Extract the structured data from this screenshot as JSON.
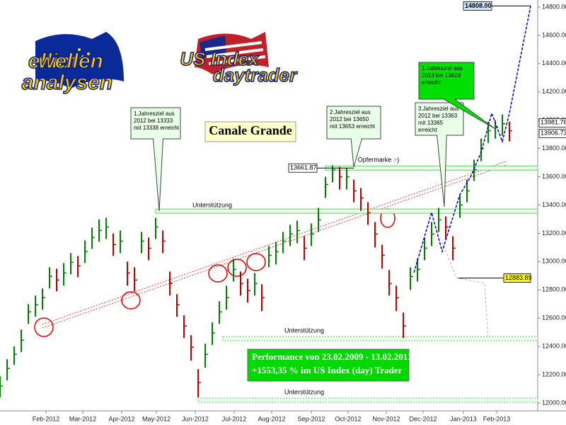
{
  "chart_data": {
    "type": "ohlc",
    "title": "Canale Grande",
    "logos": [
      [
        "elliott",
        "wellen",
        "analysen"
      ],
      [
        "US Index",
        "daytrader"
      ]
    ],
    "up_color": "#008000",
    "down_color": "#c00000",
    "x": [
      0,
      1,
      2,
      3,
      4,
      5,
      6,
      7,
      8,
      9,
      10,
      11,
      12,
      13,
      14,
      15,
      16,
      17,
      18,
      19,
      20,
      21,
      22,
      23,
      24,
      25,
      26,
      27,
      28,
      29,
      30,
      31,
      32,
      33,
      34,
      35,
      36,
      37,
      38,
      39,
      40,
      41,
      42,
      43,
      44,
      45,
      46,
      47,
      48,
      49,
      50,
      51,
      52,
      53,
      54,
      55,
      56,
      57,
      58,
      59,
      60,
      61,
      62,
      63,
      64,
      65,
      66,
      67,
      68,
      69,
      70,
      71,
      72
    ],
    "high": [
      12190,
      12310,
      12400,
      12520,
      12700,
      12760,
      12810,
      12960,
      12950,
      12990,
      13060,
      13040,
      13150,
      13240,
      13300,
      13310,
      13200,
      13220,
      13000,
      12960,
      13210,
      13170,
      13310,
      13220,
      12930,
      12770,
      12620,
      12480,
      12240,
      12420,
      12570,
      12720,
      12830,
      13020,
      12930,
      12880,
      12920,
      12840,
      13110,
      13140,
      13210,
      13260,
      13290,
      13180,
      13270,
      13380,
      13600,
      13680,
      13670,
      13660,
      13580,
      13520,
      13420,
      13280,
      13120,
      12940,
      12830,
      12640,
      12960,
      13020,
      13170,
      13280,
      13380,
      13320,
      13180,
      13470,
      13580,
      13720,
      13870,
      13990,
      14000,
      14040,
      13990
    ],
    "low": [
      12040,
      12160,
      12270,
      12360,
      12560,
      12610,
      12660,
      12810,
      12790,
      12830,
      12910,
      12890,
      12990,
      13090,
      13140,
      13160,
      13040,
      13060,
      12830,
      12790,
      13060,
      13010,
      13160,
      13060,
      12760,
      12610,
      12460,
      12300,
      12040,
      12250,
      12410,
      12560,
      12660,
      12860,
      12760,
      12710,
      12760,
      12650,
      12960,
      12980,
      13060,
      13110,
      13130,
      13010,
      13110,
      13210,
      13450,
      13560,
      13510,
      13510,
      13420,
      13360,
      13260,
      13100,
      12950,
      12760,
      12650,
      12460,
      12800,
      12860,
      13010,
      13110,
      13210,
      13160,
      13010,
      13310,
      13420,
      13570,
      13710,
      13840,
      13870,
      13890,
      13850
    ],
    "close": [
      12120,
      12245,
      12345,
      12445,
      12645,
      12695,
      12745,
      12895,
      12870,
      12920,
      12995,
      12970,
      13070,
      13170,
      13220,
      13245,
      13120,
      13145,
      12920,
      12870,
      13145,
      13095,
      13245,
      13145,
      12845,
      12695,
      12545,
      12395,
      12145,
      12345,
      12495,
      12645,
      12745,
      12945,
      12845,
      12795,
      12845,
      12745,
      13045,
      13070,
      13145,
      13195,
      13220,
      13095,
      13195,
      13295,
      13545,
      13650,
      13600,
      13600,
      13500,
      13450,
      13345,
      13195,
      13045,
      12845,
      12745,
      12545,
      12895,
      12945,
      13095,
      13195,
      13295,
      13245,
      13095,
      13400,
      13500,
      13650,
      13800,
      13925,
      13950,
      13975,
      13925
    ],
    "projection": {
      "color": "#0000cc",
      "x": [
        58.5,
        61,
        62.5,
        65,
        66.5,
        68,
        69.5,
        71,
        72,
        75
      ],
      "values": [
        12922,
        13347,
        13072,
        13473,
        13598,
        13773,
        14049,
        13849,
        14049,
        14808
      ]
    },
    "xlim": [
      0,
      76
    ],
    "ylim": [
      11945,
      14850
    ],
    "xticks": [
      {
        "value": 6.5,
        "label": "Feb-2012"
      },
      {
        "value": 11.7,
        "label": "Mar-2012"
      },
      {
        "value": 17.2,
        "label": "Apr-2012"
      },
      {
        "value": 22.1,
        "label": "May-2012"
      },
      {
        "value": 27.6,
        "label": "Jun-2012"
      },
      {
        "value": 33.1,
        "label": "Jul-2012"
      },
      {
        "value": 38.4,
        "label": "Aug-2012"
      },
      {
        "value": 44,
        "label": "Sep-2012"
      },
      {
        "value": 49.2,
        "label": "Oct-2012"
      },
      {
        "value": 54.6,
        "label": "Nov-2012"
      },
      {
        "value": 59.8,
        "label": "Dec-2012"
      },
      {
        "value": 65.5,
        "label": "Jan-2013"
      },
      {
        "value": 70.2,
        "label": "Feb-2013"
      }
    ],
    "yticks": [
      {
        "value": 12000,
        "label": "12000.00"
      },
      {
        "value": 12200,
        "label": "12200.00"
      },
      {
        "value": 12400,
        "label": "12400.00"
      },
      {
        "value": 12600,
        "label": "12600.00"
      },
      {
        "value": 12800,
        "label": "12800.00"
      },
      {
        "value": 13000,
        "label": "13000.00"
      },
      {
        "value": 13200,
        "label": "13200.00"
      },
      {
        "value": 13400,
        "label": "13400.00"
      },
      {
        "value": 13600,
        "label": "13600.00"
      },
      {
        "value": 13800,
        "label": "13800.00"
      },
      {
        "value": 14000,
        "label": "14000.00"
      },
      {
        "value": 14200,
        "label": "14200.00"
      },
      {
        "value": 14400,
        "label": "14400.00"
      },
      {
        "value": 14600,
        "label": "14600.00"
      },
      {
        "value": 14800,
        "label": "14800.00"
      }
    ],
    "levels": [
      {
        "label": "Opfermarke :-)",
        "value": 13661.87
      },
      {
        "label": "Unterstützung",
        "value": 13357
      },
      {
        "label": "Unterstützung",
        "value": 12455
      },
      {
        "label": "Unterstützung",
        "value": 12020
      }
    ],
    "price_labels": [
      {
        "value": 14808,
        "label": "14808.00"
      },
      {
        "value": 13981.76,
        "label": "13981.76"
      },
      {
        "value": 13906.73,
        "label": "13906.73"
      },
      {
        "value": 13661.87,
        "label": "13661.87"
      },
      {
        "value": 12883.89,
        "label": "12883.89"
      }
    ],
    "callouts": [
      [
        "1.Jahresziel aus",
        "2012 bei 13333",
        "mit 13338 erreicht"
      ],
      [
        "2.Jahresziel aus",
        "2012 bei 13650",
        "mit 13653 erreicht"
      ],
      [
        "3.Jahresziel aus",
        "2012 bei 13363",
        "mit 13365",
        "erreicht"
      ],
      [
        "1.Jahresziel aus",
        "2013 bei 13828",
        "erreicht"
      ]
    ],
    "performance": [
      "Performance von 23.02.2009 - 13.02.2013",
      "+1553,35 % im US Index (day) Trader"
    ]
  }
}
